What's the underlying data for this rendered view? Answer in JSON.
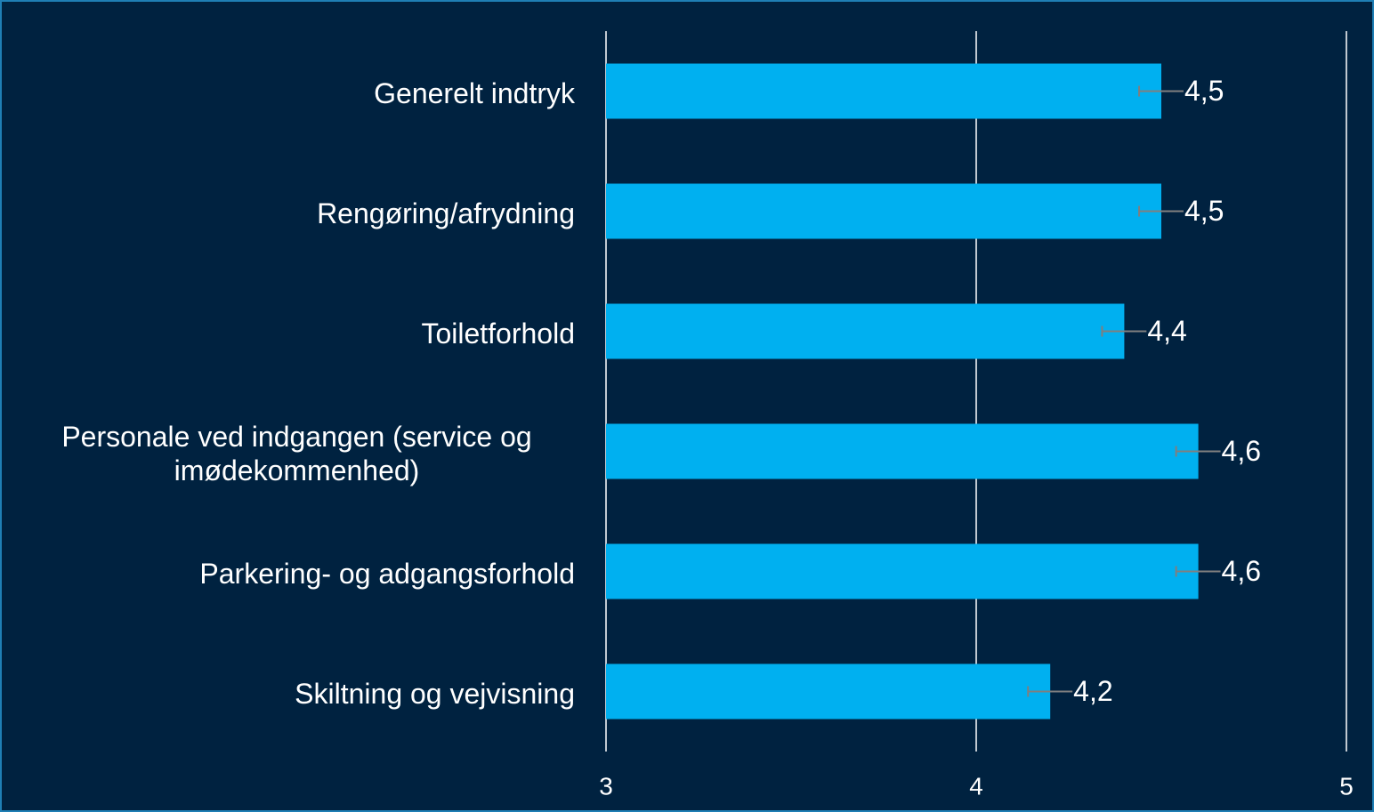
{
  "chart_data": {
    "type": "bar",
    "orientation": "horizontal",
    "categories": [
      "Generelt indtryk",
      "Rengøring/afrydning",
      "Toiletforhold",
      "Personale ved indgangen (service og imødekommenhed)",
      "Parkering- og adgangsforhold",
      "Skiltning og vejvisning"
    ],
    "values": [
      4.5,
      4.5,
      4.4,
      4.6,
      4.6,
      4.2
    ],
    "value_labels": [
      "4,5",
      "4,5",
      "4,4",
      "4,6",
      "4,6",
      "4,2"
    ],
    "errors": [
      0.06,
      0.06,
      0.06,
      0.06,
      0.06,
      0.06
    ],
    "color": "#00b0f0",
    "xlim": [
      3,
      5
    ],
    "xticks": [
      3,
      4,
      5
    ],
    "grid": true
  }
}
